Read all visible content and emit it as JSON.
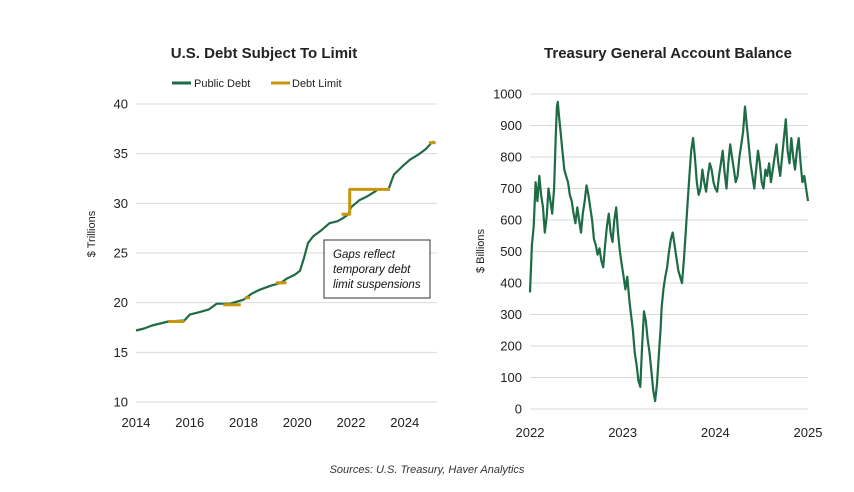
{
  "source_note": "Sources: U.S. Treasury, Haver Analytics",
  "colors": {
    "public_debt": "#1e6b45",
    "debt_limit": "#c8960c",
    "tga": "#1e6b45",
    "grid": "#d9d9d9"
  },
  "chart_data": [
    {
      "type": "line",
      "title": "U.S. Debt Subject To Limit",
      "xlabel": "",
      "ylabel": "$ Trillions",
      "xlim": [
        2014,
        2025.2
      ],
      "ylim": [
        10,
        40
      ],
      "x_ticks": [
        "2014",
        "2016",
        "2018",
        "2020",
        "2022",
        "2024"
      ],
      "y_ticks": [
        "10",
        "15",
        "20",
        "25",
        "30",
        "35",
        "40"
      ],
      "grid": "horizontal",
      "legend": "top",
      "annotation": [
        "Gaps reflect",
        "temporary debt",
        "limit suspensions"
      ],
      "series": [
        {
          "name": "Public Debt",
          "color": "#1e6b45",
          "x": [
            2014.0,
            2014.3,
            2014.6,
            2014.9,
            2015.2,
            2015.8,
            2016.0,
            2016.3,
            2016.7,
            2017.0,
            2017.5,
            2018.0,
            2018.3,
            2018.6,
            2019.0,
            2019.4,
            2019.6,
            2019.9,
            2020.1,
            2020.25,
            2020.4,
            2020.6,
            2020.9,
            2021.2,
            2021.5,
            2021.7,
            2021.9,
            2022.0,
            2022.3,
            2022.6,
            2022.9,
            2023.0,
            2023.4,
            2023.5,
            2023.6,
            2023.9,
            2024.2,
            2024.5,
            2024.8,
            2025.0,
            2025.1
          ],
          "y": [
            17.2,
            17.4,
            17.7,
            17.9,
            18.1,
            18.2,
            18.8,
            19.0,
            19.3,
            19.9,
            19.9,
            20.3,
            20.9,
            21.3,
            21.7,
            22.0,
            22.4,
            22.8,
            23.2,
            24.5,
            26.0,
            26.7,
            27.3,
            28.0,
            28.2,
            28.5,
            28.9,
            29.6,
            30.3,
            30.7,
            31.2,
            31.4,
            31.4,
            32.2,
            32.9,
            33.7,
            34.4,
            34.9,
            35.5,
            36.1,
            36.2
          ]
        },
        {
          "name": "Debt Limit",
          "color": "#c8960c",
          "x": [
            2015.2,
            2015.8,
            2017.25,
            2017.9,
            2018.05,
            2018.25,
            2019.2,
            2019.6,
            2021.65,
            2021.95,
            2021.95,
            2022.0,
            2023.0,
            2023.45,
            2024.9,
            2025.15
          ],
          "y": [
            18.1,
            18.1,
            19.8,
            19.8,
            20.5,
            20.5,
            22.0,
            22.0,
            28.9,
            28.9,
            31.4,
            31.4,
            31.4,
            31.4,
            36.1,
            36.1
          ],
          "segments": [
            [
              0,
              1
            ],
            [
              2,
              3
            ],
            [
              4,
              5
            ],
            [
              6,
              7
            ],
            [
              8,
              9,
              10,
              11,
              12,
              13
            ],
            [
              14,
              15
            ]
          ]
        }
      ]
    },
    {
      "type": "line",
      "title": "Treasury General Account Balance",
      "xlabel": "",
      "ylabel": "$ Billions",
      "xlim": [
        2022,
        2025
      ],
      "ylim": [
        0,
        1000
      ],
      "x_ticks": [
        "2022",
        "2023",
        "2024",
        "2025"
      ],
      "y_ticks": [
        "0",
        "100",
        "200",
        "300",
        "400",
        "500",
        "600",
        "700",
        "800",
        "900",
        "1000"
      ],
      "grid": "horizontal",
      "series": [
        {
          "name": "",
          "color": "#1e6b45",
          "x": [
            2022.0,
            2022.02,
            2022.04,
            2022.06,
            2022.08,
            2022.1,
            2022.12,
            2022.14,
            2022.16,
            2022.18,
            2022.2,
            2022.22,
            2022.24,
            2022.26,
            2022.28,
            2022.29,
            2022.3,
            2022.31,
            2022.33,
            2022.35,
            2022.37,
            2022.39,
            2022.41,
            2022.43,
            2022.45,
            2022.47,
            2022.49,
            2022.51,
            2022.53,
            2022.55,
            2022.57,
            2022.59,
            2022.61,
            2022.63,
            2022.65,
            2022.67,
            2022.69,
            2022.71,
            2022.73,
            2022.75,
            2022.77,
            2022.79,
            2022.81,
            2022.83,
            2022.85,
            2022.87,
            2022.89,
            2022.91,
            2022.93,
            2022.95,
            2022.97,
            2022.99,
            2023.01,
            2023.03,
            2023.05,
            2023.07,
            2023.09,
            2023.11,
            2023.13,
            2023.15,
            2023.17,
            2023.19,
            2023.21,
            2023.23,
            2023.25,
            2023.27,
            2023.29,
            2023.31,
            2023.33,
            2023.35,
            2023.37,
            2023.39,
            2023.41,
            2023.42,
            2023.44,
            2023.46,
            2023.48,
            2023.5,
            2023.52,
            2023.54,
            2023.56,
            2023.58,
            2023.6,
            2023.62,
            2023.64,
            2023.66,
            2023.68,
            2023.7,
            2023.72,
            2023.74,
            2023.76,
            2023.78,
            2023.8,
            2023.82,
            2023.84,
            2023.86,
            2023.88,
            2023.9,
            2023.92,
            2023.94,
            2023.96,
            2023.98,
            2024.0,
            2024.02,
            2024.04,
            2024.06,
            2024.08,
            2024.1,
            2024.12,
            2024.14,
            2024.16,
            2024.18,
            2024.2,
            2024.22,
            2024.24,
            2024.26,
            2024.28,
            2024.3,
            2024.32,
            2024.34,
            2024.36,
            2024.38,
            2024.4,
            2024.42,
            2024.44,
            2024.46,
            2024.48,
            2024.5,
            2024.52,
            2024.54,
            2024.56,
            2024.58,
            2024.6,
            2024.62,
            2024.64,
            2024.66,
            2024.68,
            2024.7,
            2024.72,
            2024.74,
            2024.76,
            2024.78,
            2024.8,
            2024.82,
            2024.84,
            2024.86,
            2024.88,
            2024.9,
            2024.92,
            2024.94,
            2024.96,
            2024.98,
            2025.0
          ],
          "y": [
            370,
            520,
            580,
            720,
            660,
            740,
            680,
            640,
            560,
            610,
            700,
            660,
            620,
            700,
            880,
            960,
            975,
            940,
            880,
            820,
            760,
            740,
            720,
            680,
            660,
            620,
            590,
            640,
            600,
            560,
            620,
            660,
            710,
            680,
            640,
            600,
            540,
            520,
            490,
            510,
            470,
            450,
            520,
            580,
            620,
            560,
            530,
            600,
            640,
            560,
            500,
            460,
            420,
            380,
            420,
            350,
            300,
            250,
            180,
            140,
            90,
            70,
            200,
            310,
            280,
            220,
            180,
            120,
            60,
            25,
            80,
            170,
            260,
            320,
            380,
            420,
            450,
            500,
            540,
            560,
            520,
            480,
            440,
            420,
            400,
            470,
            560,
            650,
            740,
            820,
            860,
            800,
            720,
            680,
            700,
            760,
            720,
            690,
            740,
            780,
            760,
            720,
            700,
            690,
            740,
            780,
            820,
            750,
            700,
            780,
            840,
            800,
            760,
            720,
            740,
            800,
            840,
            880,
            960,
            900,
            840,
            780,
            740,
            700,
            760,
            820,
            780,
            720,
            700,
            760,
            740,
            780,
            720,
            760,
            800,
            840,
            780,
            740,
            800,
            860,
            920,
            820,
            780,
            860,
            800,
            760,
            820,
            860,
            780,
            720,
            740,
            700,
            660
          ]
        }
      ]
    }
  ]
}
